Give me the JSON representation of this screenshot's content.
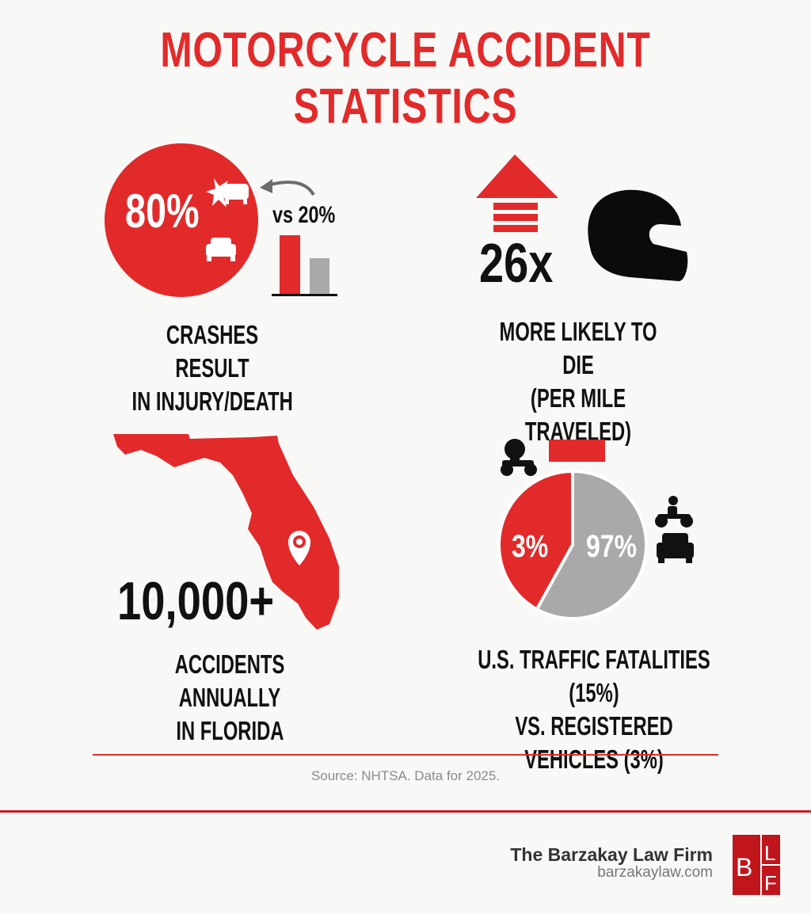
{
  "title": "MOTORCYCLE ACCIDENT STATISTICS",
  "colors": {
    "accent": "#e22a2a",
    "gray": "#a9a9a9",
    "text": "#111111",
    "logo": "#c0161b"
  },
  "stat1": {
    "value": "80%",
    "comparison": "vs 20%",
    "bars": [
      80,
      20
    ],
    "label_lines": [
      "CRASHES RESULT",
      "IN INJURY/DEATH"
    ],
    "icons": [
      "car-crash-icon",
      "car-icon",
      "curved-arrow-icon"
    ]
  },
  "stat2": {
    "value": "26x",
    "label_lines": [
      "MORE LIKELY TO DIE",
      "(PER MILE TRAVELED)"
    ],
    "icons": [
      "up-arrow-icon",
      "helmet-icon"
    ]
  },
  "stat3": {
    "value": "10,000+",
    "label_lines": [
      "ACCIDENTS ANNUALLY",
      "IN FLORIDA"
    ],
    "icons": [
      "florida-map-icon",
      "map-pin-icon"
    ]
  },
  "stat4": {
    "pie": [
      {
        "label": "3%",
        "value": 3
      },
      {
        "label": "97%",
        "value": 97
      }
    ],
    "label_lines": [
      "U.S. TRAFFIC FATALITIES (15%)",
      "VS. REGISTERED VEHICLES (3%)"
    ],
    "icons": [
      "skull-motorcycle-icon",
      "motorcyclist-icon",
      "car-icon"
    ]
  },
  "source": "Source: NHTSA. Data for 2025.",
  "footer": {
    "firm": "The Barzakay Law Firm",
    "url": "barzakaylaw.com",
    "logo_letters": "BLF"
  }
}
